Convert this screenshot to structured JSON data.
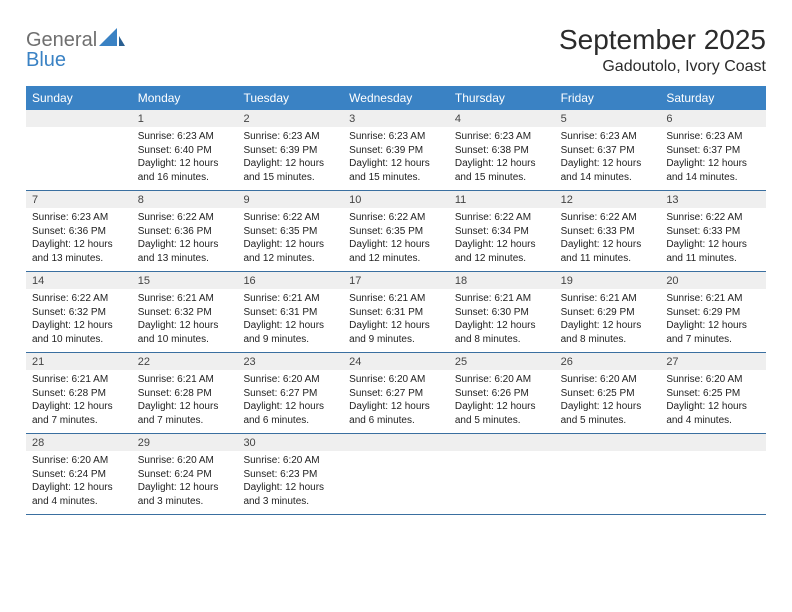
{
  "logo": {
    "text1": "General",
    "text2": "Blue"
  },
  "title": "September 2025",
  "location": "Gadoutolo, Ivory Coast",
  "headerColor": "#3a82c4",
  "dayNumBg": "#efefef",
  "borderColor": "#3a6fa0",
  "dayHeaders": [
    "Sunday",
    "Monday",
    "Tuesday",
    "Wednesday",
    "Thursday",
    "Friday",
    "Saturday"
  ],
  "weeks": [
    [
      null,
      {
        "n": "1",
        "sr": "Sunrise: 6:23 AM",
        "ss": "Sunset: 6:40 PM",
        "d1": "Daylight: 12 hours",
        "d2": "and 16 minutes."
      },
      {
        "n": "2",
        "sr": "Sunrise: 6:23 AM",
        "ss": "Sunset: 6:39 PM",
        "d1": "Daylight: 12 hours",
        "d2": "and 15 minutes."
      },
      {
        "n": "3",
        "sr": "Sunrise: 6:23 AM",
        "ss": "Sunset: 6:39 PM",
        "d1": "Daylight: 12 hours",
        "d2": "and 15 minutes."
      },
      {
        "n": "4",
        "sr": "Sunrise: 6:23 AM",
        "ss": "Sunset: 6:38 PM",
        "d1": "Daylight: 12 hours",
        "d2": "and 15 minutes."
      },
      {
        "n": "5",
        "sr": "Sunrise: 6:23 AM",
        "ss": "Sunset: 6:37 PM",
        "d1": "Daylight: 12 hours",
        "d2": "and 14 minutes."
      },
      {
        "n": "6",
        "sr": "Sunrise: 6:23 AM",
        "ss": "Sunset: 6:37 PM",
        "d1": "Daylight: 12 hours",
        "d2": "and 14 minutes."
      }
    ],
    [
      {
        "n": "7",
        "sr": "Sunrise: 6:23 AM",
        "ss": "Sunset: 6:36 PM",
        "d1": "Daylight: 12 hours",
        "d2": "and 13 minutes."
      },
      {
        "n": "8",
        "sr": "Sunrise: 6:22 AM",
        "ss": "Sunset: 6:36 PM",
        "d1": "Daylight: 12 hours",
        "d2": "and 13 minutes."
      },
      {
        "n": "9",
        "sr": "Sunrise: 6:22 AM",
        "ss": "Sunset: 6:35 PM",
        "d1": "Daylight: 12 hours",
        "d2": "and 12 minutes."
      },
      {
        "n": "10",
        "sr": "Sunrise: 6:22 AM",
        "ss": "Sunset: 6:35 PM",
        "d1": "Daylight: 12 hours",
        "d2": "and 12 minutes."
      },
      {
        "n": "11",
        "sr": "Sunrise: 6:22 AM",
        "ss": "Sunset: 6:34 PM",
        "d1": "Daylight: 12 hours",
        "d2": "and 12 minutes."
      },
      {
        "n": "12",
        "sr": "Sunrise: 6:22 AM",
        "ss": "Sunset: 6:33 PM",
        "d1": "Daylight: 12 hours",
        "d2": "and 11 minutes."
      },
      {
        "n": "13",
        "sr": "Sunrise: 6:22 AM",
        "ss": "Sunset: 6:33 PM",
        "d1": "Daylight: 12 hours",
        "d2": "and 11 minutes."
      }
    ],
    [
      {
        "n": "14",
        "sr": "Sunrise: 6:22 AM",
        "ss": "Sunset: 6:32 PM",
        "d1": "Daylight: 12 hours",
        "d2": "and 10 minutes."
      },
      {
        "n": "15",
        "sr": "Sunrise: 6:21 AM",
        "ss": "Sunset: 6:32 PM",
        "d1": "Daylight: 12 hours",
        "d2": "and 10 minutes."
      },
      {
        "n": "16",
        "sr": "Sunrise: 6:21 AM",
        "ss": "Sunset: 6:31 PM",
        "d1": "Daylight: 12 hours",
        "d2": "and 9 minutes."
      },
      {
        "n": "17",
        "sr": "Sunrise: 6:21 AM",
        "ss": "Sunset: 6:31 PM",
        "d1": "Daylight: 12 hours",
        "d2": "and 9 minutes."
      },
      {
        "n": "18",
        "sr": "Sunrise: 6:21 AM",
        "ss": "Sunset: 6:30 PM",
        "d1": "Daylight: 12 hours",
        "d2": "and 8 minutes."
      },
      {
        "n": "19",
        "sr": "Sunrise: 6:21 AM",
        "ss": "Sunset: 6:29 PM",
        "d1": "Daylight: 12 hours",
        "d2": "and 8 minutes."
      },
      {
        "n": "20",
        "sr": "Sunrise: 6:21 AM",
        "ss": "Sunset: 6:29 PM",
        "d1": "Daylight: 12 hours",
        "d2": "and 7 minutes."
      }
    ],
    [
      {
        "n": "21",
        "sr": "Sunrise: 6:21 AM",
        "ss": "Sunset: 6:28 PM",
        "d1": "Daylight: 12 hours",
        "d2": "and 7 minutes."
      },
      {
        "n": "22",
        "sr": "Sunrise: 6:21 AM",
        "ss": "Sunset: 6:28 PM",
        "d1": "Daylight: 12 hours",
        "d2": "and 7 minutes."
      },
      {
        "n": "23",
        "sr": "Sunrise: 6:20 AM",
        "ss": "Sunset: 6:27 PM",
        "d1": "Daylight: 12 hours",
        "d2": "and 6 minutes."
      },
      {
        "n": "24",
        "sr": "Sunrise: 6:20 AM",
        "ss": "Sunset: 6:27 PM",
        "d1": "Daylight: 12 hours",
        "d2": "and 6 minutes."
      },
      {
        "n": "25",
        "sr": "Sunrise: 6:20 AM",
        "ss": "Sunset: 6:26 PM",
        "d1": "Daylight: 12 hours",
        "d2": "and 5 minutes."
      },
      {
        "n": "26",
        "sr": "Sunrise: 6:20 AM",
        "ss": "Sunset: 6:25 PM",
        "d1": "Daylight: 12 hours",
        "d2": "and 5 minutes."
      },
      {
        "n": "27",
        "sr": "Sunrise: 6:20 AM",
        "ss": "Sunset: 6:25 PM",
        "d1": "Daylight: 12 hours",
        "d2": "and 4 minutes."
      }
    ],
    [
      {
        "n": "28",
        "sr": "Sunrise: 6:20 AM",
        "ss": "Sunset: 6:24 PM",
        "d1": "Daylight: 12 hours",
        "d2": "and 4 minutes."
      },
      {
        "n": "29",
        "sr": "Sunrise: 6:20 AM",
        "ss": "Sunset: 6:24 PM",
        "d1": "Daylight: 12 hours",
        "d2": "and 3 minutes."
      },
      {
        "n": "30",
        "sr": "Sunrise: 6:20 AM",
        "ss": "Sunset: 6:23 PM",
        "d1": "Daylight: 12 hours",
        "d2": "and 3 minutes."
      },
      null,
      null,
      null,
      null
    ]
  ]
}
